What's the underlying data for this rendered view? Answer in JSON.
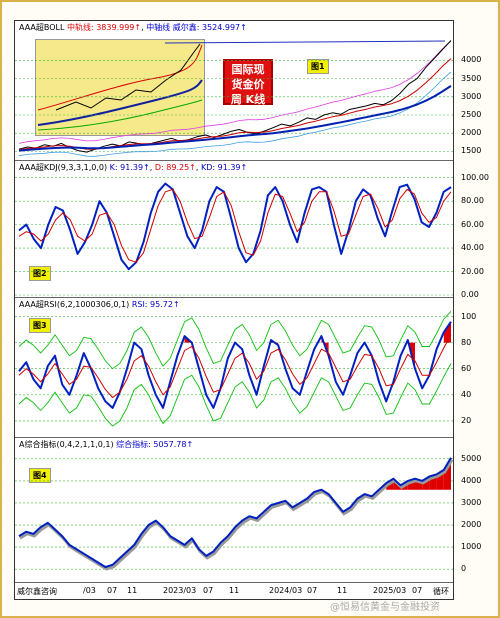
{
  "chart_data": [
    {
      "type": "line",
      "panel": "price",
      "title_prefix": "AAA超BOLL",
      "indicators": [
        {
          "label": "中轨线: 3839.999↑",
          "color": "#d00000"
        },
        {
          "label": "中轴线 威尔鑫: 3524.997↑",
          "color": "#0000c0"
        }
      ],
      "ylim": [
        1400,
        4700
      ],
      "yticks": [
        "4000",
        "3500",
        "3000",
        "2500",
        "2000",
        "1500"
      ],
      "series": [
        {
          "values": [
            1560,
            1620,
            1590,
            1680,
            1640,
            1720,
            1600,
            1520,
            1480,
            1560,
            1640,
            1700,
            1650,
            1760,
            1720,
            1680,
            1740,
            1800,
            1860,
            1780,
            1820,
            1900,
            1950,
            1880,
            1960,
            2050,
            2100,
            2020,
            1980,
            2060,
            2150,
            2250,
            2200,
            2300,
            2420,
            2380,
            2500,
            2560,
            2520,
            2650,
            2700,
            2750,
            2820,
            2780,
            2900,
            3100,
            3350,
            3500,
            3800,
            4050,
            4300,
            4550
          ]
        },
        {
          "values": [
            1540,
            1580,
            1600,
            1620,
            1650,
            1660,
            1640,
            1600,
            1560,
            1560,
            1590,
            1630,
            1660,
            1690,
            1710,
            1710,
            1720,
            1750,
            1790,
            1800,
            1810,
            1840,
            1880,
            1900,
            1920,
            1960,
            2010,
            2030,
            2020,
            2030,
            2070,
            2130,
            2170,
            2210,
            2280,
            2330,
            2390,
            2450,
            2490,
            2550,
            2610,
            2660,
            2720,
            2760,
            2810,
            2900,
            3020,
            3180,
            3380,
            3600,
            3840,
            4050
          ]
        },
        {
          "values": [
            1520,
            1540,
            1560,
            1575,
            1590,
            1600,
            1605,
            1600,
            1590,
            1585,
            1590,
            1605,
            1625,
            1645,
            1665,
            1680,
            1695,
            1715,
            1740,
            1760,
            1778,
            1798,
            1820,
            1842,
            1864,
            1888,
            1915,
            1940,
            1960,
            1978,
            2000,
            2030,
            2062,
            2095,
            2130,
            2170,
            2212,
            2256,
            2300,
            2345,
            2392,
            2440,
            2490,
            2535,
            2582,
            2640,
            2710,
            2790,
            2890,
            3010,
            3150,
            3300
          ]
        }
      ]
    },
    {
      "type": "line",
      "panel": "kdj",
      "title": "AAA超KDJ(9,3,3,1,0,0)",
      "readouts": [
        {
          "label": "K: 91.39↑",
          "color": "#0000c0"
        },
        {
          "label": "D: 89.25↑",
          "color": "#d00000"
        },
        {
          "label": "KD: 91.39↑",
          "color": "#0000c0"
        }
      ],
      "ylim": [
        0,
        104
      ],
      "yticks": [
        "100.00",
        "80.00",
        "60.00",
        "40.00",
        "20.00",
        "0.00"
      ],
      "series": [
        {
          "values": [
            55,
            60,
            48,
            40,
            60,
            75,
            72,
            55,
            35,
            45,
            60,
            80,
            70,
            50,
            30,
            22,
            28,
            45,
            70,
            88,
            95,
            90,
            70,
            50,
            40,
            55,
            80,
            92,
            88,
            65,
            40,
            28,
            35,
            55,
            85,
            92,
            80,
            60,
            45,
            70,
            90,
            92,
            88,
            60,
            35,
            55,
            80,
            90,
            85,
            65,
            50,
            72,
            92,
            94,
            82,
            62,
            58,
            70,
            88,
            92
          ]
        },
        {
          "values": [
            50,
            54,
            52,
            46,
            52,
            64,
            70,
            64,
            50,
            46,
            52,
            68,
            70,
            60,
            42,
            30,
            28,
            36,
            56,
            76,
            88,
            90,
            80,
            62,
            48,
            50,
            66,
            84,
            88,
            76,
            54,
            36,
            34,
            46,
            70,
            86,
            84,
            70,
            54,
            62,
            80,
            88,
            88,
            72,
            50,
            52,
            68,
            84,
            86,
            74,
            58,
            64,
            82,
            90,
            86,
            70,
            62,
            66,
            80,
            88
          ]
        }
      ]
    },
    {
      "type": "line",
      "panel": "rsi",
      "title": "AAA超RSI(6,2,1000306,0,1)",
      "readouts": [
        {
          "label": "RSI: 95.72↑",
          "color": "#0000c0"
        }
      ],
      "ylim": [
        10,
        105
      ],
      "yticks": [
        "100",
        "80",
        "60",
        "40",
        "20"
      ],
      "series": [
        {
          "values": [
            58,
            65,
            52,
            45,
            62,
            70,
            48,
            40,
            55,
            72,
            60,
            45,
            35,
            30,
            42,
            60,
            80,
            75,
            55,
            40,
            30,
            50,
            70,
            85,
            80,
            60,
            40,
            30,
            45,
            68,
            80,
            75,
            55,
            40,
            62,
            82,
            78,
            60,
            45,
            40,
            58,
            75,
            85,
            70,
            50,
            40,
            55,
            72,
            80,
            70,
            50,
            35,
            50,
            70,
            82,
            60,
            45,
            55,
            75,
            88,
            96
          ]
        },
        {
          "values": [
            55,
            60,
            56,
            50,
            56,
            64,
            56,
            48,
            52,
            62,
            61,
            53,
            44,
            38,
            42,
            52,
            66,
            70,
            62,
            50,
            40,
            46,
            60,
            74,
            77,
            68,
            54,
            42,
            44,
            56,
            68,
            72,
            64,
            52,
            58,
            72,
            75,
            67,
            56,
            48,
            53,
            64,
            75,
            72,
            61,
            50,
            52,
            62,
            71,
            70,
            60,
            47,
            48,
            60,
            71,
            66,
            55,
            55,
            65,
            76,
            86
          ]
        }
      ]
    },
    {
      "type": "line",
      "panel": "composite",
      "title": "A综合指标(0,4,2,1,1,0,1)",
      "readouts": [
        {
          "label": "综合指标: 5057.78↑",
          "color": "#0000c0"
        }
      ],
      "ylim": [
        -400,
        5400
      ],
      "yticks": [
        "5000",
        "4000",
        "3000",
        "2000",
        "1000",
        "0"
      ],
      "series": [
        {
          "values": [
            1500,
            1700,
            1600,
            1900,
            2100,
            1800,
            1500,
            1100,
            900,
            700,
            500,
            300,
            100,
            200,
            500,
            800,
            1100,
            1600,
            2000,
            2200,
            1900,
            1500,
            1300,
            1100,
            1400,
            900,
            600,
            800,
            1200,
            1500,
            1900,
            2200,
            2400,
            2300,
            2600,
            2900,
            3000,
            3100,
            2800,
            3000,
            3200,
            3500,
            3600,
            3400,
            3000,
            2600,
            2800,
            3200,
            3400,
            3300,
            3600,
            3900,
            4100,
            3800,
            4000,
            4100,
            4000,
            4200,
            4300,
            4500,
            5050
          ]
        }
      ]
    }
  ],
  "tags": {
    "p1": "图1",
    "p2": "图2",
    "p3": "图3",
    "p4": "图4"
  },
  "stamp": {
    "l1": "国际现",
    "l2": "货金价",
    "l3": "周 K线"
  },
  "xaxis": {
    "labels": [
      "威尔鑫咨询",
      "/03",
      "07",
      "11",
      "2023/03",
      "07",
      "11",
      "2024/03",
      "07",
      "11",
      "2025/03",
      "07",
      "循环"
    ]
  },
  "watermark": "@恒易信黄金与金融投资"
}
